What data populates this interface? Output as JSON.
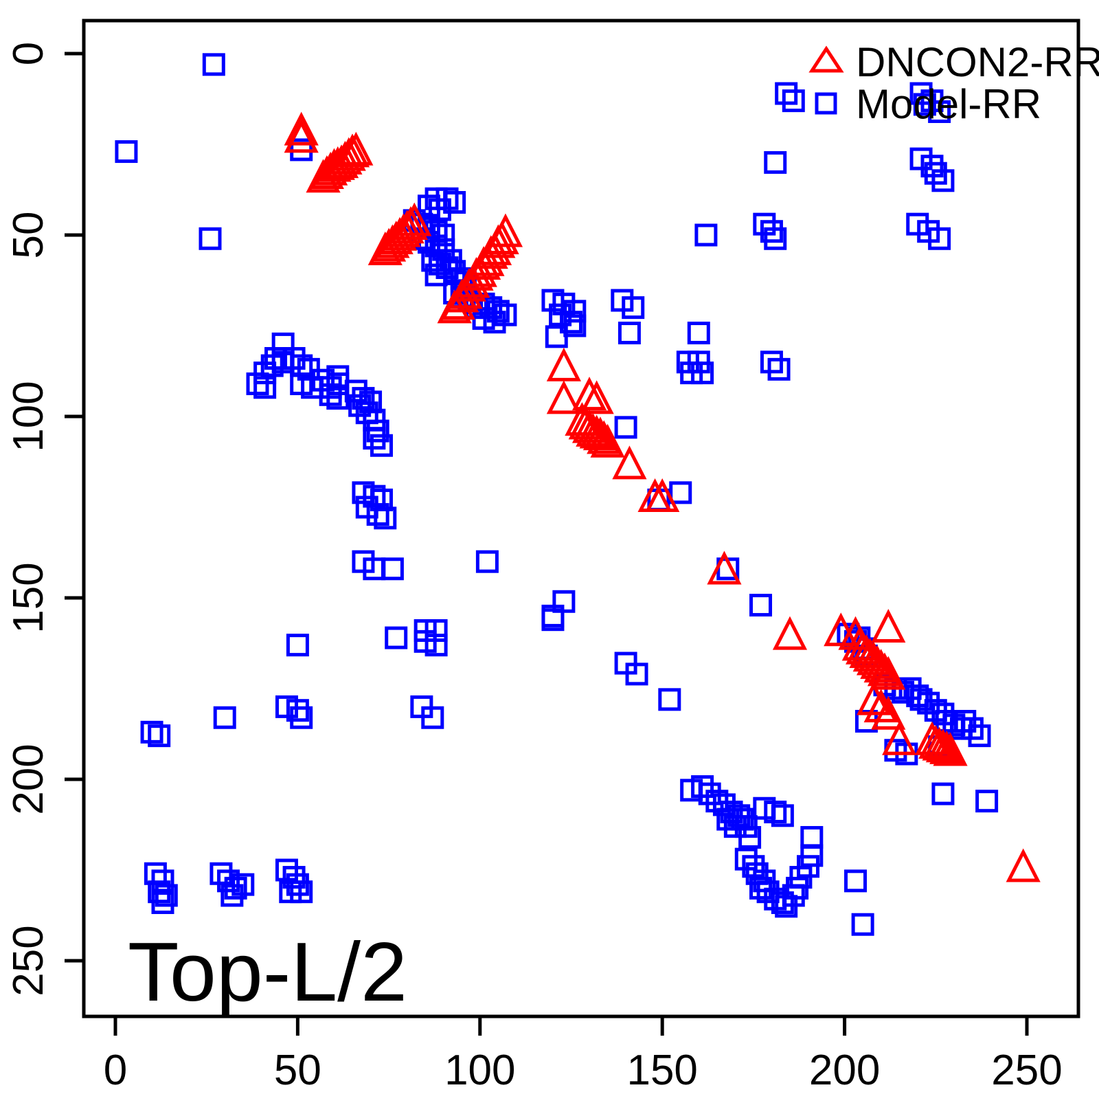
{
  "labels": {
    "corner_label": "Top-L/2"
  },
  "legend": {
    "items": [
      {
        "label": "DNCON2-RR",
        "marker": "triangle",
        "color": "#FF0000"
      },
      {
        "label": "Model-RR",
        "marker": "square",
        "color": "#0000FF"
      }
    ]
  },
  "axes": {
    "x_ticks": [
      0,
      50,
      100,
      150,
      200,
      250
    ],
    "y_ticks": [
      0,
      50,
      100,
      150,
      200,
      250
    ],
    "x_range": [
      -8,
      264
    ],
    "y_range": [
      -9,
      265
    ],
    "y_inverted": true,
    "grid": false
  },
  "chart_data": {
    "type": "scatter",
    "title": "Top-L/2",
    "xlabel": "",
    "ylabel": "",
    "legend_position": "top-right",
    "series": [
      {
        "name": "Model-RR",
        "marker": "square",
        "color": "#0000FF",
        "points": [
          [
            27,
            3
          ],
          [
            3,
            27
          ],
          [
            51,
            26.5
          ],
          [
            26,
            51
          ],
          [
            184,
            11
          ],
          [
            186,
            13
          ],
          [
            221,
            11
          ],
          [
            222,
            14
          ],
          [
            224,
            13
          ],
          [
            226,
            16
          ],
          [
            181,
            30
          ],
          [
            221,
            29
          ],
          [
            224,
            31
          ],
          [
            225,
            33
          ],
          [
            227,
            35
          ],
          [
            178,
            47
          ],
          [
            180,
            49
          ],
          [
            181,
            51
          ],
          [
            220,
            47
          ],
          [
            223,
            49
          ],
          [
            226,
            51
          ],
          [
            162,
            50
          ],
          [
            88,
            40
          ],
          [
            91,
            40
          ],
          [
            93,
            41
          ],
          [
            86,
            42
          ],
          [
            89,
            43
          ],
          [
            82,
            46
          ],
          [
            84,
            47
          ],
          [
            86,
            48
          ],
          [
            88,
            49
          ],
          [
            90,
            50
          ],
          [
            84,
            51
          ],
          [
            86,
            52
          ],
          [
            88,
            53
          ],
          [
            90,
            54
          ],
          [
            92,
            57
          ],
          [
            87,
            57
          ],
          [
            89,
            58
          ],
          [
            91,
            59
          ],
          [
            93,
            60
          ],
          [
            95,
            62
          ],
          [
            88,
            61
          ],
          [
            96,
            63
          ],
          [
            93,
            66
          ],
          [
            95,
            67
          ],
          [
            97,
            68
          ],
          [
            99,
            70
          ],
          [
            101,
            69
          ],
          [
            103,
            70
          ],
          [
            105,
            71
          ],
          [
            107,
            72
          ],
          [
            101,
            73
          ],
          [
            104,
            74
          ],
          [
            120,
            68
          ],
          [
            123,
            69
          ],
          [
            126,
            71
          ],
          [
            122,
            72
          ],
          [
            125,
            74
          ],
          [
            126,
            75
          ],
          [
            121,
            78
          ],
          [
            139,
            68
          ],
          [
            142,
            70
          ],
          [
            141,
            77
          ],
          [
            160,
            77
          ],
          [
            157,
            85
          ],
          [
            160,
            85
          ],
          [
            158,
            88
          ],
          [
            161,
            88
          ],
          [
            180,
            85
          ],
          [
            182,
            87
          ],
          [
            140,
            103
          ],
          [
            149,
            123
          ],
          [
            155,
            121
          ],
          [
            168,
            142
          ],
          [
            102,
            140
          ],
          [
            123,
            151
          ],
          [
            120,
            155
          ],
          [
            177,
            152
          ],
          [
            46,
            80
          ],
          [
            44,
            84
          ],
          [
            46,
            85
          ],
          [
            43,
            86
          ],
          [
            41,
            88
          ],
          [
            49,
            84
          ],
          [
            51,
            86
          ],
          [
            53,
            87
          ],
          [
            51,
            91
          ],
          [
            54,
            92
          ],
          [
            57,
            90
          ],
          [
            59,
            92
          ],
          [
            61,
            89
          ],
          [
            61,
            91
          ],
          [
            59,
            94
          ],
          [
            61,
            95
          ],
          [
            41,
            92
          ],
          [
            39,
            91
          ],
          [
            66,
            93
          ],
          [
            68,
            95
          ],
          [
            70,
            96
          ],
          [
            67,
            97
          ],
          [
            69,
            99
          ],
          [
            71,
            101
          ],
          [
            72,
            104
          ],
          [
            71,
            106
          ],
          [
            73,
            108
          ],
          [
            68,
            121
          ],
          [
            71,
            122
          ],
          [
            73,
            123
          ],
          [
            69,
            125
          ],
          [
            72,
            127
          ],
          [
            74,
            128
          ],
          [
            68,
            140
          ],
          [
            71,
            142
          ],
          [
            76,
            142
          ],
          [
            30,
            183
          ],
          [
            47,
            180
          ],
          [
            50,
            181
          ],
          [
            51,
            183
          ],
          [
            10,
            187
          ],
          [
            12,
            188
          ],
          [
            50,
            163
          ],
          [
            77,
            161
          ],
          [
            11,
            226
          ],
          [
            13,
            228
          ],
          [
            12,
            231
          ],
          [
            14,
            232
          ],
          [
            13,
            234
          ],
          [
            29,
            226
          ],
          [
            31,
            228
          ],
          [
            33,
            230
          ],
          [
            35,
            229
          ],
          [
            32,
            232
          ],
          [
            47,
            225
          ],
          [
            49,
            227
          ],
          [
            50,
            229
          ],
          [
            51,
            231
          ],
          [
            48,
            231
          ],
          [
            85,
            159
          ],
          [
            88,
            159
          ],
          [
            85,
            162
          ],
          [
            88,
            163
          ],
          [
            84,
            180
          ],
          [
            87,
            183
          ],
          [
            120,
            156
          ],
          [
            140,
            168
          ],
          [
            143,
            171
          ],
          [
            152,
            178
          ],
          [
            158,
            203
          ],
          [
            161,
            202
          ],
          [
            163,
            204
          ],
          [
            165,
            206
          ],
          [
            167,
            207
          ],
          [
            169,
            209
          ],
          [
            171,
            210
          ],
          [
            168,
            211
          ],
          [
            170,
            213
          ],
          [
            172,
            211
          ],
          [
            173,
            213
          ],
          [
            174,
            216
          ],
          [
            178,
            208
          ],
          [
            181,
            209
          ],
          [
            183,
            210
          ],
          [
            173,
            222
          ],
          [
            175,
            224
          ],
          [
            176,
            226
          ],
          [
            178,
            228
          ],
          [
            177,
            230
          ],
          [
            179,
            231
          ],
          [
            181,
            233
          ],
          [
            183,
            234
          ],
          [
            184,
            235
          ],
          [
            186,
            232
          ],
          [
            187,
            230
          ],
          [
            188,
            227
          ],
          [
            190,
            224
          ],
          [
            191,
            221
          ],
          [
            191,
            216
          ],
          [
            203,
            228
          ],
          [
            205,
            240
          ],
          [
            227,
            204
          ],
          [
            239,
            206
          ],
          [
            206,
            184
          ],
          [
            214,
            192
          ],
          [
            217,
            193
          ],
          [
            226,
            191
          ],
          [
            211,
            174
          ],
          [
            214,
            175
          ],
          [
            216,
            176
          ],
          [
            218,
            175
          ],
          [
            220,
            177
          ],
          [
            221,
            178
          ],
          [
            223,
            179
          ],
          [
            225,
            181
          ],
          [
            227,
            182
          ],
          [
            228,
            184
          ],
          [
            230,
            185
          ],
          [
            232,
            186
          ],
          [
            233,
            184
          ],
          [
            235,
            186
          ],
          [
            237,
            188
          ],
          [
            201,
            160
          ],
          [
            203,
            162
          ],
          [
            204,
            161
          ],
          [
            205,
            164
          ],
          [
            206,
            166
          ]
        ]
      },
      {
        "name": "DNCON2-RR",
        "marker": "triangle",
        "color": "#FF0000",
        "points": [
          [
            51,
            22
          ],
          [
            51,
            24
          ],
          [
            57,
            35
          ],
          [
            58,
            34
          ],
          [
            59,
            33
          ],
          [
            60,
            32
          ],
          [
            61,
            31.5
          ],
          [
            62,
            31
          ],
          [
            63,
            30
          ],
          [
            64,
            29
          ],
          [
            65,
            28
          ],
          [
            66,
            27.5
          ],
          [
            82,
            47
          ],
          [
            81,
            48
          ],
          [
            80,
            49
          ],
          [
            79,
            50
          ],
          [
            78,
            51
          ],
          [
            77,
            52
          ],
          [
            76,
            53
          ],
          [
            75,
            54
          ],
          [
            74,
            55
          ],
          [
            107,
            50
          ],
          [
            106,
            52
          ],
          [
            105,
            53
          ],
          [
            104,
            55
          ],
          [
            103,
            56
          ],
          [
            102,
            58
          ],
          [
            101,
            59
          ],
          [
            100,
            61
          ],
          [
            99,
            62
          ],
          [
            98,
            64
          ],
          [
            97,
            65
          ],
          [
            96,
            67
          ],
          [
            95,
            68
          ],
          [
            94,
            70
          ],
          [
            93,
            71
          ],
          [
            123,
            87
          ],
          [
            123,
            96
          ],
          [
            130,
            95
          ],
          [
            132,
            96
          ],
          [
            128,
            102
          ],
          [
            129,
            103
          ],
          [
            130,
            104
          ],
          [
            131,
            105
          ],
          [
            132,
            105.5
          ],
          [
            133,
            106
          ],
          [
            134,
            107
          ],
          [
            135,
            108
          ],
          [
            141,
            114
          ],
          [
            148,
            123
          ],
          [
            150,
            123
          ],
          [
            167,
            143
          ],
          [
            185,
            161
          ],
          [
            199,
            160
          ],
          [
            203,
            161
          ],
          [
            204,
            164
          ],
          [
            212,
            159
          ],
          [
            205,
            165
          ],
          [
            206,
            166
          ],
          [
            207,
            167
          ],
          [
            208,
            168
          ],
          [
            209,
            169
          ],
          [
            210,
            170
          ],
          [
            211,
            171
          ],
          [
            212,
            172
          ],
          [
            208,
            179
          ],
          [
            210,
            181
          ],
          [
            212,
            183
          ],
          [
            215,
            190
          ],
          [
            224,
            190
          ],
          [
            225,
            191
          ],
          [
            226,
            191.5
          ],
          [
            227,
            192
          ],
          [
            228,
            192.5
          ],
          [
            229,
            193
          ],
          [
            249,
            225
          ]
        ]
      }
    ]
  }
}
